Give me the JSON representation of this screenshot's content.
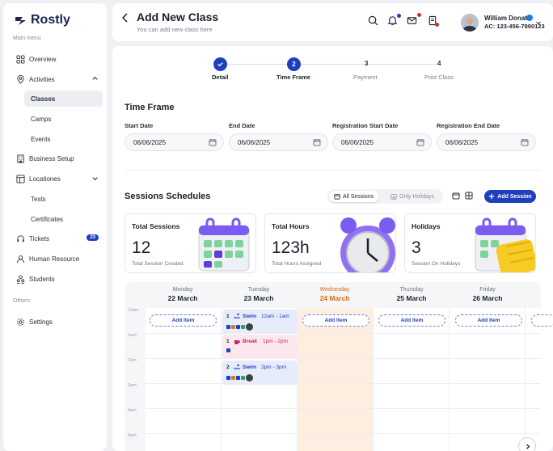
{
  "brand": {
    "name": "Rostly"
  },
  "sidebar": {
    "main_label": "Main menu",
    "others_label": "Others",
    "items": [
      {
        "label": "Overview",
        "icon": "grid-icon"
      },
      {
        "label": "Activities",
        "icon": "location-pin-icon"
      },
      {
        "label": "Classes",
        "active": true
      },
      {
        "label": "Camps"
      },
      {
        "label": "Events"
      },
      {
        "label": "Business Setup",
        "icon": "building-icon"
      },
      {
        "label": "Locationes",
        "icon": "layout-icon"
      },
      {
        "label": "Tests"
      },
      {
        "label": "Certificates"
      },
      {
        "label": "Tickets",
        "icon": "headset-icon",
        "badge": "23"
      },
      {
        "label": "Human Resource",
        "icon": "user-icon"
      },
      {
        "label": "Students",
        "icon": "users-icon"
      },
      {
        "label": "Settings",
        "icon": "gear-icon"
      }
    ]
  },
  "header": {
    "title": "Add New Class",
    "subtitle": "You can add new class here",
    "user_name": "William Donat",
    "user_account": "AC: 123-456-7890123"
  },
  "steps": [
    {
      "number": "✓",
      "label": "Detail",
      "state": "done"
    },
    {
      "number": "2",
      "label": "Time Frame",
      "state": "current"
    },
    {
      "number": "3",
      "label": "Payment",
      "state": "pending"
    },
    {
      "number": "4",
      "label": "Post Class",
      "state": "pending"
    }
  ],
  "time_frame": {
    "heading": "Time Frame",
    "fields": [
      {
        "label": "Start Date",
        "value": "06/06/2025"
      },
      {
        "label": "End Date",
        "value": "06/06/2025"
      },
      {
        "label": "Registration Start Date",
        "value": "06/06/2025"
      },
      {
        "label": "Registration End Date",
        "value": "06/06/2025"
      }
    ]
  },
  "sessions": {
    "heading": "Sessions Schedules",
    "toggle_all": "All Sessions",
    "toggle_holidays": "Only Holidays",
    "add_button": "Add Session",
    "cards": [
      {
        "title": "Total Sessions",
        "value": "12",
        "caption": "Total Session Created"
      },
      {
        "title": "Total Hours",
        "value": "123h",
        "caption": "Total Hours Assigned"
      },
      {
        "title": "Holidays",
        "value": "3",
        "caption": "Session On Holidays"
      }
    ]
  },
  "schedule": {
    "days": [
      {
        "name": "Monday",
        "date": "22 March"
      },
      {
        "name": "Tuesday",
        "date": "23 March"
      },
      {
        "name": "Wednesday",
        "date": "24 March",
        "today": true
      },
      {
        "name": "Thursday",
        "date": "25 March"
      },
      {
        "name": "Friday",
        "date": "26 March"
      }
    ],
    "times": [
      "12am",
      "1am",
      "2am",
      "3am",
      "4am",
      "5am"
    ],
    "add_item_label": "Add Item",
    "events": [
      {
        "number": "1",
        "name": "Swim",
        "time": "12am - 1am",
        "color": "#e7ecfb"
      },
      {
        "number": "1",
        "name": "Break",
        "time": "1pm - 2pm",
        "color": "#fde7ef"
      },
      {
        "number": "2",
        "name": "Swim",
        "time": "2pm - 3pm",
        "color": "#e7ecfb"
      }
    ]
  }
}
